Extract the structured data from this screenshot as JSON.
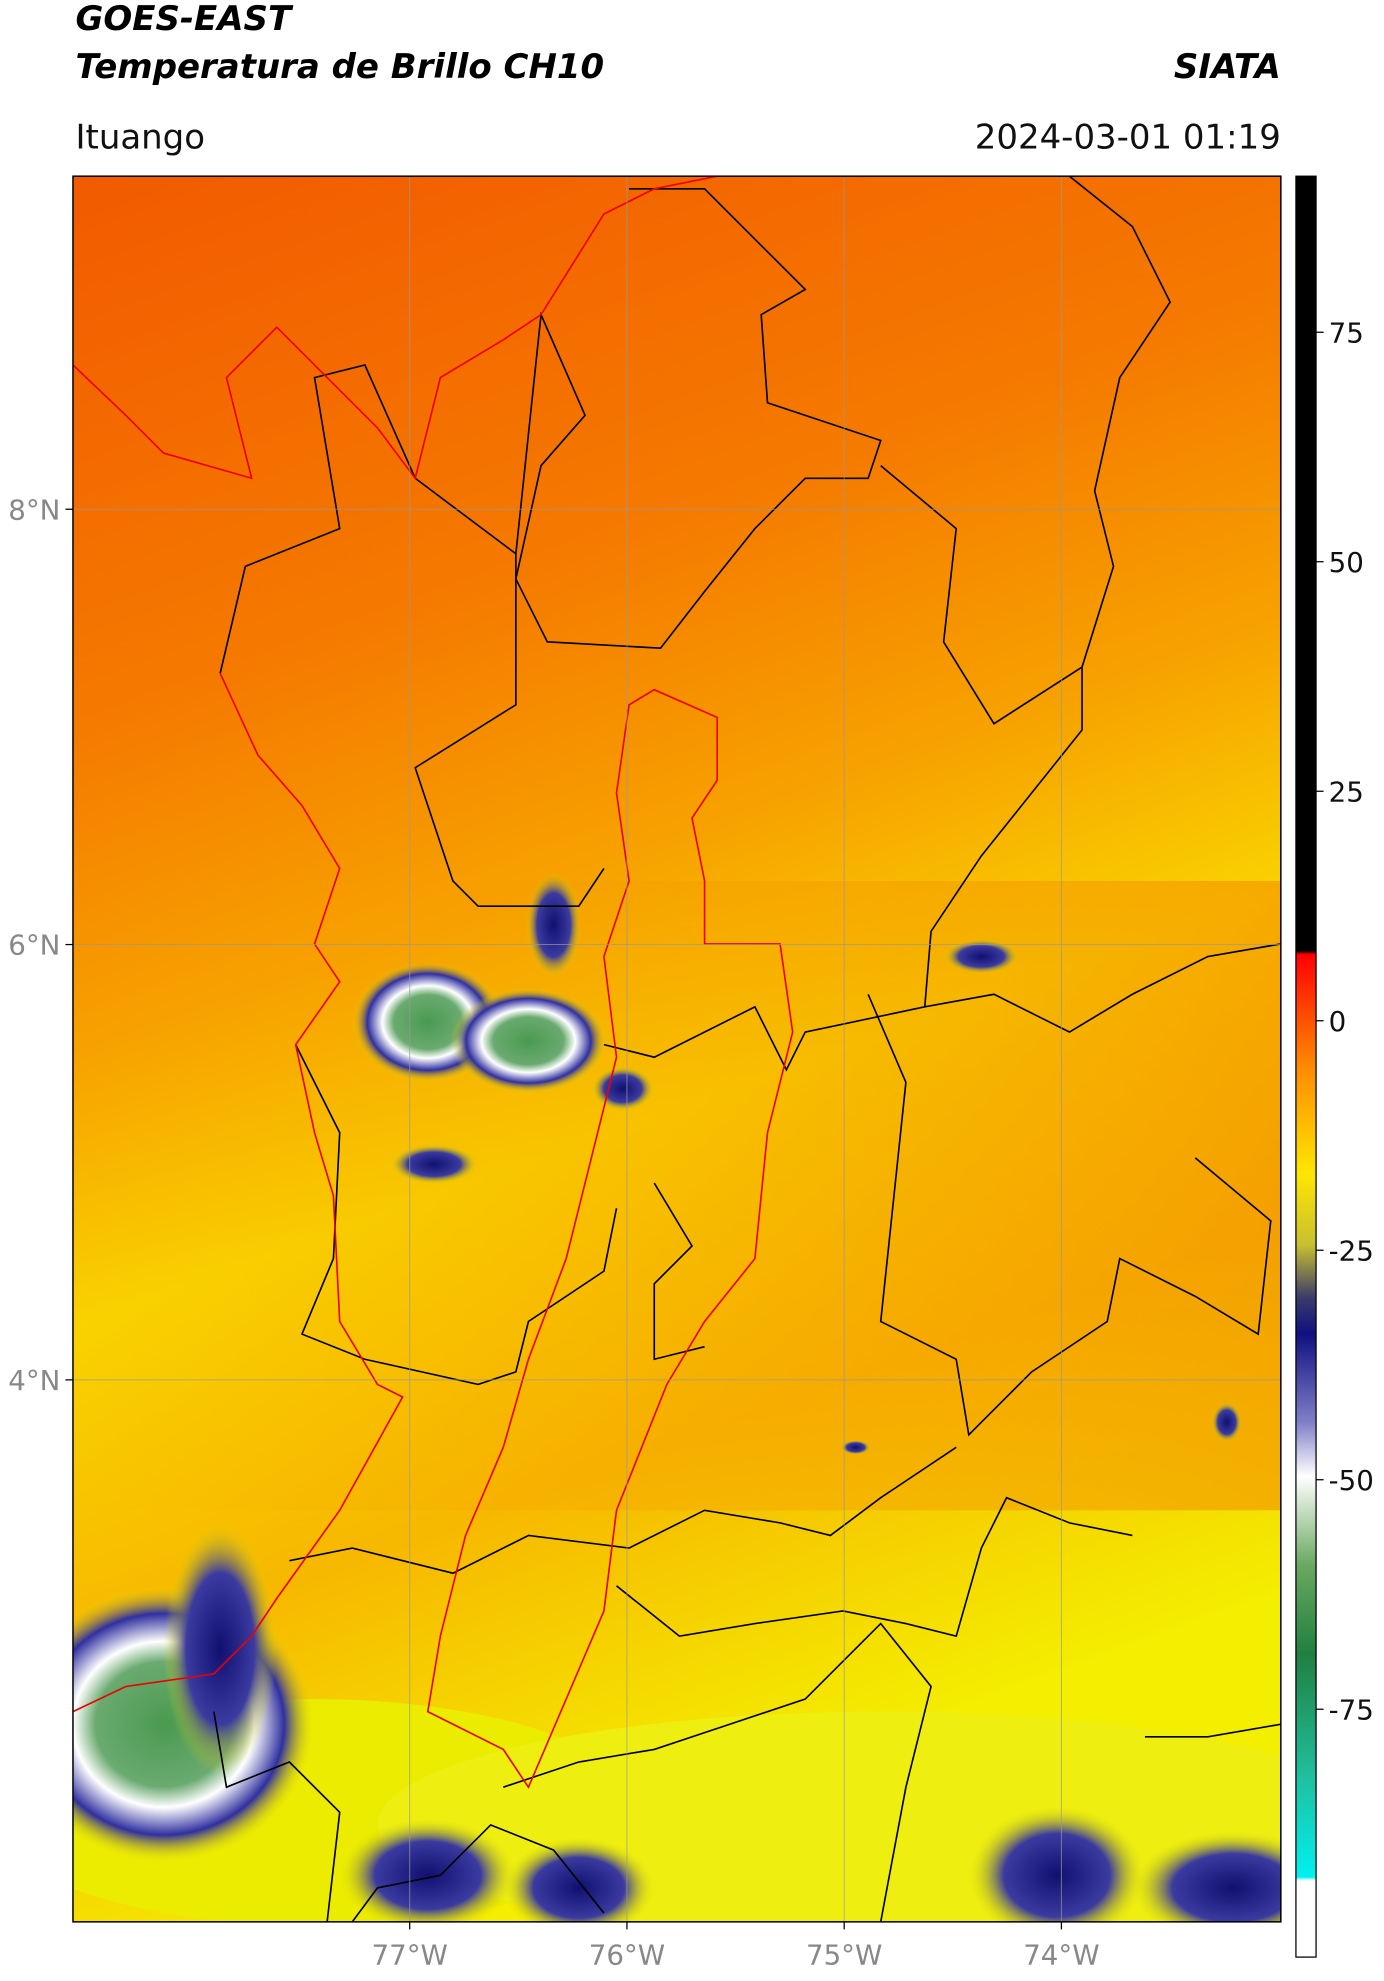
{
  "header": {
    "title": "GOES-EAST",
    "subtitle": "Temperatura de Brillo CH10",
    "credit": "SIATA",
    "location": "Ituango",
    "datetime": "2024-03-01 01:19"
  },
  "map": {
    "xlim": [
      -78.55,
      -72.99
    ],
    "ylim": [
      1.51,
      9.53
    ],
    "xticks": [
      {
        "value": -77,
        "label": "77°W"
      },
      {
        "value": -76,
        "label": "76°W"
      },
      {
        "value": -75,
        "label": "75°W"
      },
      {
        "value": -74,
        "label": "74°W"
      }
    ],
    "yticks": [
      {
        "value": 8,
        "label": "8°N"
      },
      {
        "value": 6,
        "label": "6°N"
      },
      {
        "value": 4,
        "label": "4°N"
      }
    ],
    "grid": true
  },
  "colorbar": {
    "lim": [
      -102,
      92
    ],
    "ticks": [
      75,
      50,
      25,
      0,
      -25,
      -50,
      -75
    ]
  }
}
